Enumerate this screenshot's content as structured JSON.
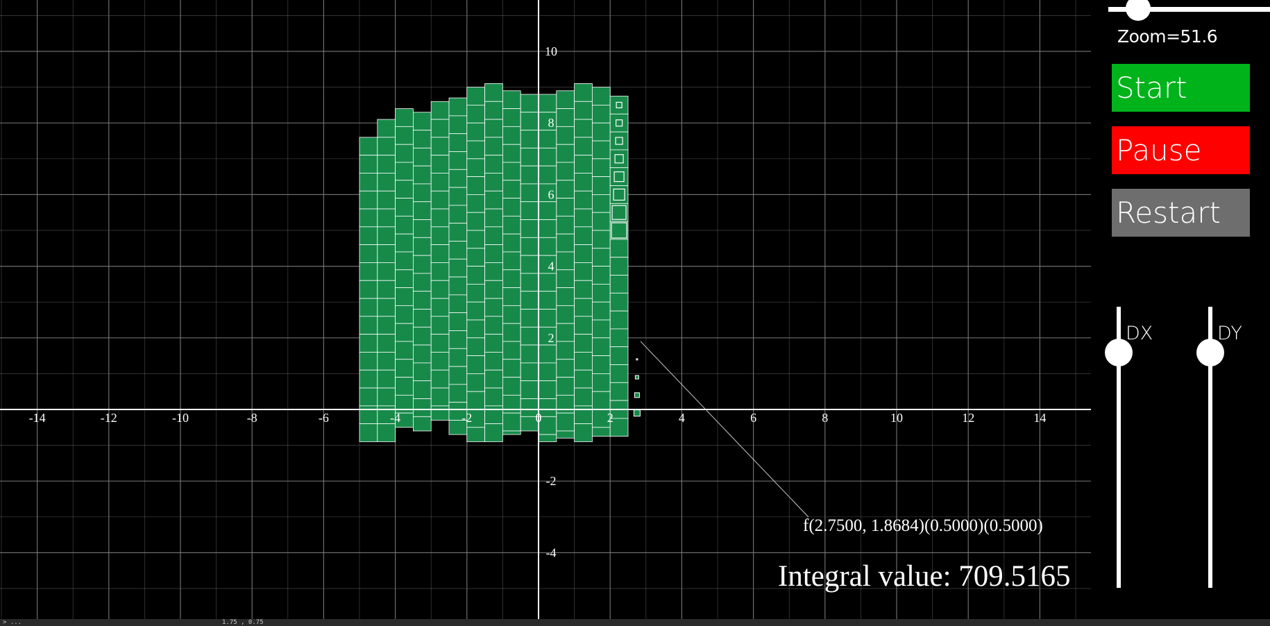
{
  "graph": {
    "x_tick_labels": [
      "-14",
      "-12",
      "-10",
      "-8",
      "-6",
      "-4",
      "-2",
      "0",
      "2",
      "4",
      "6",
      "8",
      "10",
      "12",
      "14"
    ],
    "y_tick_labels": [
      "-4",
      "-2",
      "2",
      "4",
      "6",
      "8",
      "10"
    ],
    "formula_label": "f(2.7500, 1.8684)(0.5000)(0.5000)",
    "integral_label": "Integral value: 709.5165",
    "colors": {
      "background": "#000000",
      "grid_line": "#7a7a7a",
      "axis": "#ffffff",
      "bar_fill": "#178a4a",
      "bar_stroke": "#ffffff"
    }
  },
  "controls": {
    "zoom_label": "Zoom=51.6",
    "zoom_value": 51.6,
    "start_label": "Start",
    "pause_label": "Pause",
    "restart_label": "Restart",
    "dx_label": "DX",
    "dy_label": "DY",
    "colors": {
      "start": "#00b31a",
      "pause": "#ff0000",
      "restart": "#6e6e6e"
    }
  },
  "statusbar": {
    "left_text": "> ...",
    "middle_text": "1.75 , 0.75"
  }
}
